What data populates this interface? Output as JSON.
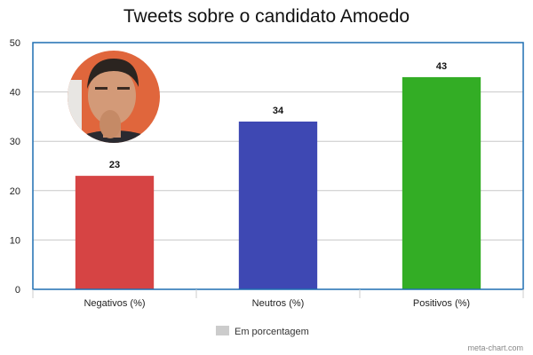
{
  "chart_data": {
    "type": "bar",
    "title": "Tweets sobre o candidato Amoedo",
    "categories": [
      "Negativos (%)",
      "Neutros (%)",
      "Positivos (%)"
    ],
    "series": [
      {
        "name": "Em porcentagem",
        "values": [
          23,
          34,
          43
        ]
      }
    ],
    "bar_colors": [
      "#d64444",
      "#3e48b3",
      "#33ad25"
    ],
    "legend_color": "#cccccc",
    "ylim": [
      0,
      50
    ],
    "yticks": [
      0,
      10,
      20,
      30,
      40,
      50
    ],
    "grid": true,
    "legend_position": "bottom",
    "frame_color": "#1f6fb2",
    "credit": "meta-chart.com",
    "photo_icon": "candidate-photo-icon"
  }
}
